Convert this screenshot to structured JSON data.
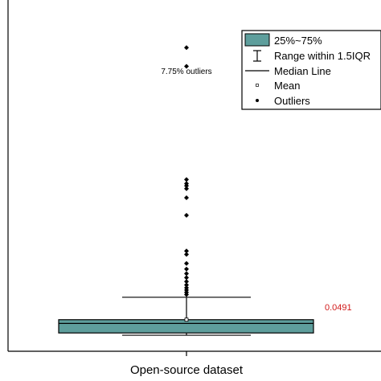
{
  "chart_data": {
    "type": "box",
    "categories": [
      "Open-source dataset"
    ],
    "xlabel": "",
    "ylabel": "",
    "ylim": [
      0,
      0.62
    ],
    "grid": false,
    "legend_placement": "top-right",
    "box": {
      "q1": 0.0323,
      "q3": 0.0557,
      "median": 0.0491,
      "mean": 0.0558,
      "whisker_low": 0.0283,
      "whisker_high": 0.0953
    },
    "outliers": [
      0.1,
      0.104,
      0.108,
      0.112,
      0.117,
      0.123,
      0.13,
      0.137,
      0.145,
      0.155,
      0.171,
      0.177,
      0.24,
      0.271,
      0.287,
      0.292,
      0.296,
      0.303,
      0.503,
      0.536
    ],
    "outlier_annotation": "7.75% outliers",
    "median_label": "0.0491",
    "legend": [
      {
        "key": "box",
        "label": "25%~75%"
      },
      {
        "key": "range",
        "label": "Range within 1.5IQR"
      },
      {
        "key": "median",
        "label": "Median Line"
      },
      {
        "key": "mean",
        "label": "Mean"
      },
      {
        "key": "outliers",
        "label": "Outliers"
      }
    ],
    "colors": {
      "box_fill": "#5e9e9c",
      "box_stroke": "#000000",
      "median_label": "#d11a1a",
      "marks": "#000000"
    }
  }
}
